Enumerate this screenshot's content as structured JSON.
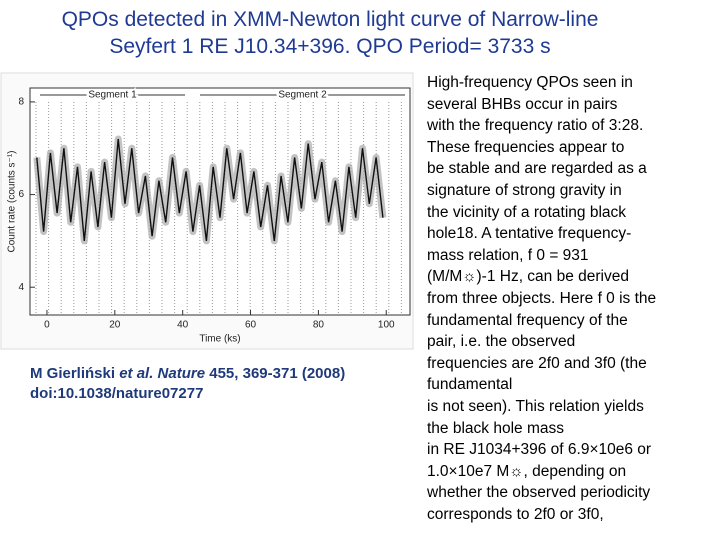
{
  "title": [
    "QPOs detected in XMM-Newton light curve of Narrow-line",
    "Seyfert 1 RE J10.34+396. QPO Period= 3733 s"
  ],
  "figure": {
    "chart_data": {
      "type": "line",
      "x_label": "Time (ks)",
      "y_label": "Count rate (counts s⁻¹)",
      "segments": [
        "Segment 1",
        "Segment 2"
      ],
      "x": [
        -3,
        -1,
        1,
        3,
        5,
        7,
        9,
        11,
        13,
        15,
        17,
        19,
        21,
        23,
        25,
        27,
        29,
        31,
        33,
        35,
        37,
        39,
        41,
        43,
        45,
        47,
        49,
        51,
        53,
        55,
        57,
        59,
        61,
        63,
        65,
        67,
        69,
        71,
        73,
        75,
        77,
        79,
        81,
        83,
        85,
        87,
        89,
        91,
        93,
        95,
        97,
        99
      ],
      "values": [
        6.8,
        5.2,
        6.9,
        5.6,
        7.0,
        5.4,
        6.6,
        5.0,
        6.5,
        5.3,
        6.7,
        5.5,
        7.2,
        5.8,
        7.0,
        5.6,
        6.4,
        5.1,
        6.3,
        5.4,
        6.8,
        5.6,
        6.5,
        5.2,
        6.2,
        5.0,
        6.6,
        5.5,
        7.0,
        5.9,
        6.9,
        5.6,
        6.5,
        5.3,
        6.2,
        5.0,
        6.4,
        5.4,
        6.8,
        5.7,
        7.1,
        5.9,
        6.7,
        5.4,
        6.3,
        5.2,
        6.6,
        5.5,
        7.0,
        5.8,
        6.8,
        5.5
      ],
      "color": "#111111",
      "xlim": [
        -5,
        107
      ],
      "ylim": [
        3.4,
        8.3
      ],
      "xticks": [
        0,
        20,
        40,
        60,
        80,
        100
      ],
      "yticks": [
        4,
        6,
        8
      ]
    }
  },
  "caption": [
    "M Gierliński ",
    "et al. Nature",
    " 455, 369-371 (2008) doi:10.1038/nature07277"
  ],
  "body": [
    "High-frequency QPOs seen in",
    "several BHBs occur in pairs",
    "with the frequency ratio of 3:28.",
    "These frequencies appear to",
    "be stable and are regarded as a",
    "signature of strong gravity in",
    "the vicinity of a rotating black",
    "hole18. A tentative frequency-",
    "mass relation, f 0 = 931",
    "(M/M☼)-1  Hz, can be derived",
    "from three objects. Here f 0 is the",
    "fundamental frequency of the",
    "pair, i.e. the observed",
    "frequencies are 2f0 and 3f0 (the",
    "fundamental",
    "is not seen). This relation yields",
    "the black hole mass",
    "in RE J1034+396 of 6.9×10e6 or",
    "1.0×10e7 M☼, depending on",
    "whether the observed periodicity",
    "corresponds to 2f0 or 3f0,"
  ]
}
